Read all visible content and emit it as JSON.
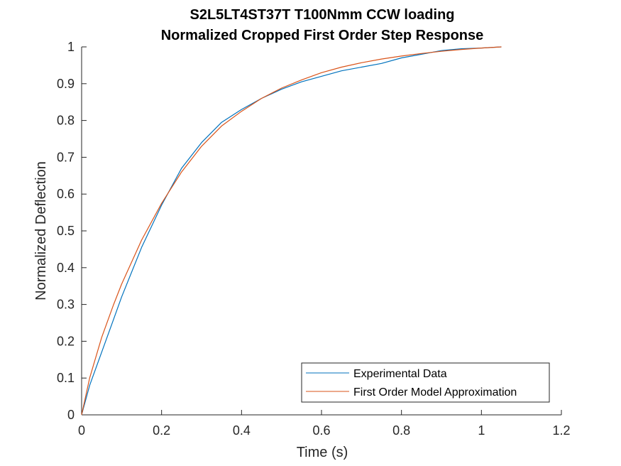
{
  "chart_data": {
    "type": "line",
    "title": [
      "S2L5LT4ST37T T100Nmm CCW loading",
      "Normalized Cropped First Order Step Response"
    ],
    "xlabel": "Time (s)",
    "ylabel": "Normalized Deflection",
    "xlim": [
      0,
      1.2
    ],
    "ylim": [
      0,
      1
    ],
    "xticks": [
      0,
      0.2,
      0.4,
      0.6,
      0.8,
      1,
      1.2
    ],
    "xtick_labels": [
      "0",
      "0.2",
      "0.4",
      "0.6",
      "0.8",
      "1",
      "1.2"
    ],
    "yticks": [
      0,
      0.1,
      0.2,
      0.3,
      0.4,
      0.5,
      0.6,
      0.7,
      0.8,
      0.9,
      1
    ],
    "ytick_labels": [
      "0",
      "0.1",
      "0.2",
      "0.3",
      "0.4",
      "0.5",
      "0.6",
      "0.7",
      "0.8",
      "0.9",
      "1"
    ],
    "grid": false,
    "legend_position": "bottom-right",
    "series": [
      {
        "name": "Experimental Data",
        "color": "#0072BD",
        "x": [
          0,
          0.02,
          0.05,
          0.08,
          0.1,
          0.15,
          0.2,
          0.25,
          0.3,
          0.35,
          0.4,
          0.45,
          0.5,
          0.55,
          0.6,
          0.65,
          0.7,
          0.75,
          0.8,
          0.85,
          0.9,
          0.95,
          1.0,
          1.05
        ],
        "y": [
          0,
          0.08,
          0.17,
          0.26,
          0.32,
          0.455,
          0.57,
          0.67,
          0.74,
          0.795,
          0.83,
          0.86,
          0.885,
          0.905,
          0.92,
          0.935,
          0.945,
          0.955,
          0.97,
          0.98,
          0.99,
          0.995,
          0.997,
          1.0
        ]
      },
      {
        "name": "First Order Model Approximation",
        "color": "#D95319",
        "x": [
          0,
          0.02,
          0.05,
          0.08,
          0.1,
          0.15,
          0.2,
          0.25,
          0.3,
          0.35,
          0.4,
          0.45,
          0.5,
          0.55,
          0.6,
          0.65,
          0.7,
          0.75,
          0.8,
          0.85,
          0.9,
          0.95,
          1.0,
          1.05
        ],
        "y": [
          0,
          0.1,
          0.21,
          0.3,
          0.355,
          0.475,
          0.575,
          0.66,
          0.73,
          0.785,
          0.825,
          0.86,
          0.888,
          0.91,
          0.93,
          0.945,
          0.957,
          0.967,
          0.975,
          0.982,
          0.988,
          0.993,
          0.997,
          1.0
        ]
      }
    ]
  }
}
